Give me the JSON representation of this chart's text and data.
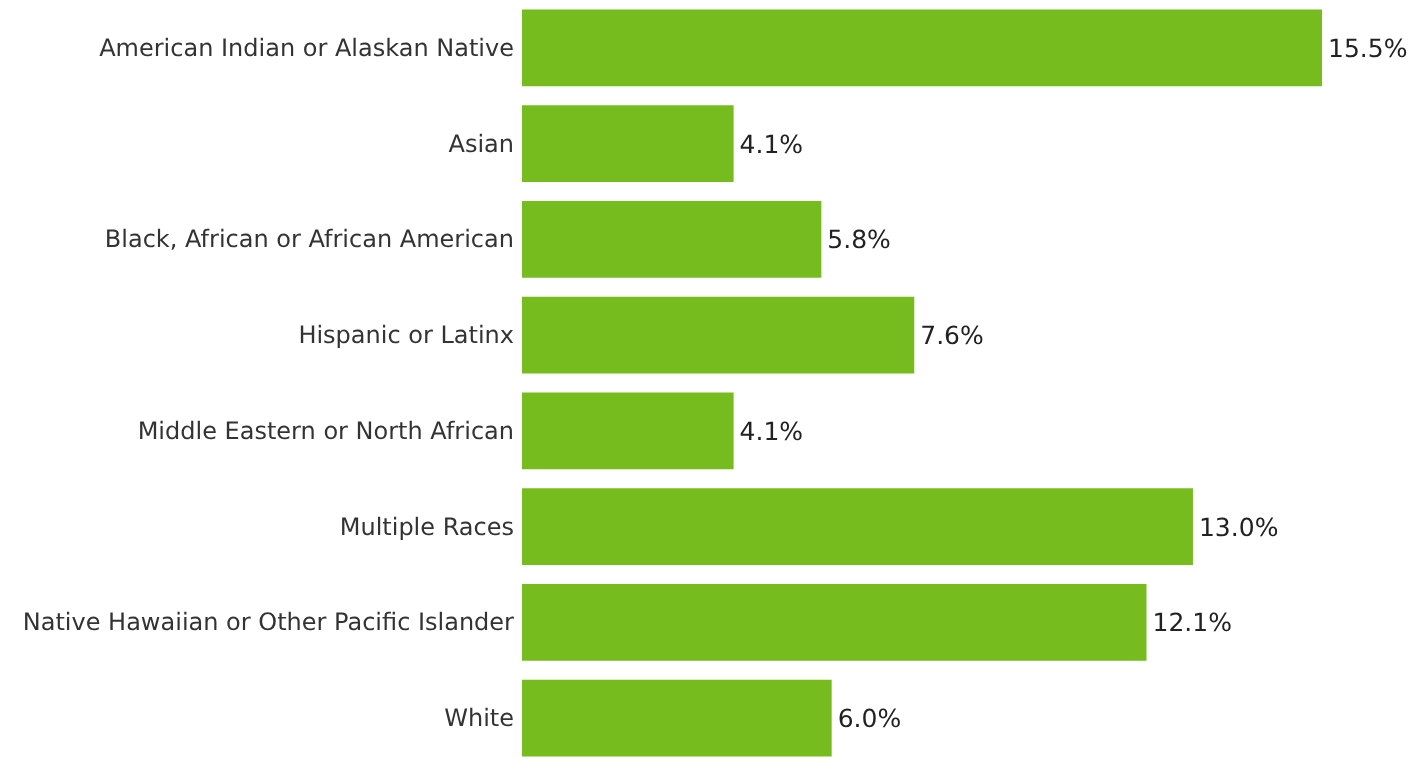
{
  "chart_data": {
    "type": "bar",
    "orientation": "horizontal",
    "categories": [
      "American Indian or Alaskan Native",
      "Asian",
      "Black, African or African American",
      "Hispanic or Latinx",
      "Middle Eastern or North African",
      "Multiple Races",
      "Native Hawaiian or Other Pacific Islander",
      "White"
    ],
    "values": [
      15.5,
      4.1,
      5.8,
      7.6,
      4.1,
      13.0,
      12.1,
      6.0
    ],
    "value_labels": [
      "15.5%",
      "4.1%",
      "5.8%",
      "7.6%",
      "4.1%",
      "13.0%",
      "12.1%",
      "6.0%"
    ],
    "color": "#77bc1f"
  }
}
